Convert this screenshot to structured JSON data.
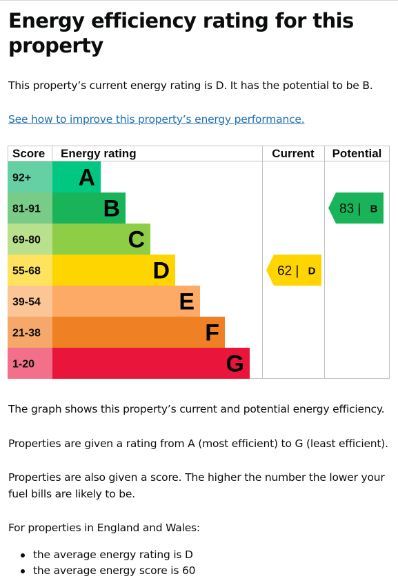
{
  "page": {
    "title": "Energy efficiency rating for this property",
    "intro": "This property’s current energy rating is D. It has the potential to be B.",
    "link": "See how to improve this property’s energy performance.",
    "para1": "The graph shows this property’s current and potential energy efficiency.",
    "para2": "Properties are given a rating from A (most efficient) to G (least efficient).",
    "para3": "Properties are also given a score. The higher the number the lower your fuel bills are likely to be.",
    "para4": "For properties in England and Wales:",
    "bullets": [
      "the average energy rating is D",
      "the average energy score is 60"
    ]
  },
  "chart_data": {
    "type": "bar",
    "headers": {
      "score": "Score",
      "rating": "Energy rating",
      "current": "Current",
      "potential": "Potential"
    },
    "bands": [
      {
        "letter": "A",
        "range": "92+",
        "color": "#00c781",
        "score_color": "#64d0a4"
      },
      {
        "letter": "B",
        "range": "81-91",
        "color": "#19b459",
        "score_color": "#79cc87"
      },
      {
        "letter": "C",
        "range": "69-80",
        "color": "#8dce46",
        "score_color": "#b9e08c"
      },
      {
        "letter": "D",
        "range": "55-68",
        "color": "#ffd500",
        "score_color": "#ffe35f"
      },
      {
        "letter": "E",
        "range": "39-54",
        "color": "#fcaa65",
        "score_color": "#fcc596"
      },
      {
        "letter": "F",
        "range": "21-38",
        "color": "#ef8023",
        "score_color": "#f5a869"
      },
      {
        "letter": "G",
        "range": "1-20",
        "color": "#e9153b",
        "score_color": "#f27089"
      }
    ],
    "current": {
      "score": 62,
      "letter": "D",
      "label": "62 |",
      "color": "#ffd500"
    },
    "potential": {
      "score": 83,
      "letter": "B",
      "label": "83 |",
      "color": "#19b459"
    }
  }
}
